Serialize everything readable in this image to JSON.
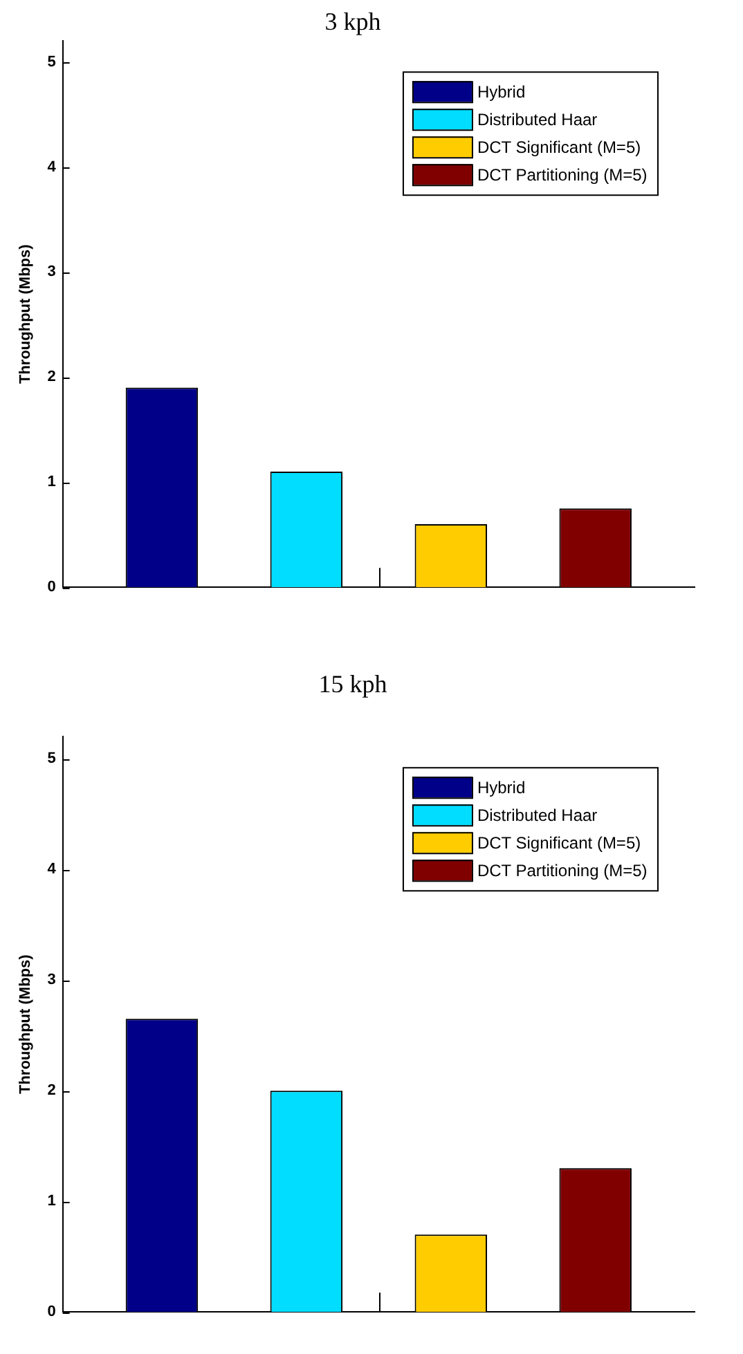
{
  "chart_data": [
    {
      "type": "bar",
      "title": "3 kph",
      "ylabel": "Throughput (Mbps)",
      "categories": [
        null
      ],
      "ylim": [
        0,
        5.2
      ],
      "yticks": [
        0,
        1,
        2,
        3,
        4,
        5
      ],
      "legend": "top right",
      "grid": false,
      "series": [
        {
          "name": "Hybrid",
          "color": "#000088",
          "values": [
            1.9
          ]
        },
        {
          "name": "Distributed Haar",
          "color": "#00ddff",
          "values": [
            1.1
          ]
        },
        {
          "name": "DCT Significant (M=5)",
          "color": "#ffcc00",
          "values": [
            0.6
          ]
        },
        {
          "name": "DCT Partitioning (M=5)",
          "color": "#800000",
          "values": [
            0.75
          ]
        }
      ]
    },
    {
      "type": "bar",
      "title": "15 kph",
      "ylabel": "Throughput (Mbps)",
      "categories": [
        null
      ],
      "ylim": [
        0,
        5.2
      ],
      "yticks": [
        0,
        1,
        2,
        3,
        4,
        5
      ],
      "legend": "top right",
      "grid": false,
      "series": [
        {
          "name": "Hybrid",
          "color": "#000088",
          "values": [
            2.65
          ]
        },
        {
          "name": "Distributed Haar",
          "color": "#00ddff",
          "values": [
            2.0
          ]
        },
        {
          "name": "DCT Significant (M=5)",
          "color": "#ffcc00",
          "values": [
            0.7
          ]
        },
        {
          "name": "DCT Partitioning (M=5)",
          "color": "#800000",
          "values": [
            1.3
          ]
        }
      ]
    }
  ]
}
